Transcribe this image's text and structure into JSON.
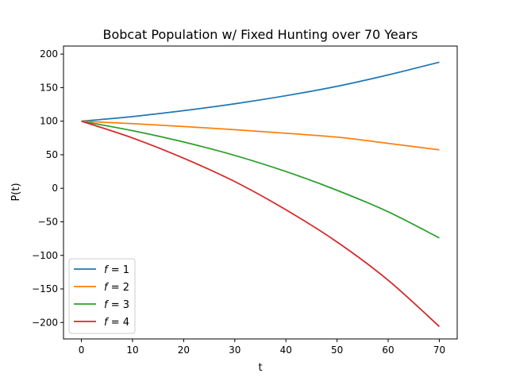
{
  "chart_data": {
    "type": "line",
    "title": "Bobcat Population w/ Fixed Hunting over 70 Years",
    "xlabel": "t",
    "ylabel": "P(t)",
    "xlim": [
      -3.5,
      73.5
    ],
    "ylim": [
      -224.5,
      212
    ],
    "xticks": [
      0,
      10,
      20,
      30,
      40,
      50,
      60,
      70
    ],
    "yticks": [
      -200,
      -150,
      -100,
      -50,
      0,
      50,
      100,
      150,
      200
    ],
    "ytick_labels": [
      "−200",
      "−150",
      "−100",
      "−50",
      "0",
      "50",
      "100",
      "150",
      "200"
    ],
    "grid": false,
    "legend_position": "lower-left",
    "x": [
      0,
      10,
      20,
      30,
      40,
      50,
      60,
      70
    ],
    "series": [
      {
        "name": "f = 1",
        "f": "1",
        "color": "#1f77b4",
        "values": [
          100,
          106.9,
          115.7,
          126.0,
          138.0,
          152.0,
          169.0,
          188.0
        ]
      },
      {
        "name": "f = 2",
        "f": "2",
        "color": "#ff7f0e",
        "values": [
          100,
          96.3,
          92.1,
          87.4,
          82.0,
          76.2,
          67.0,
          57.3
        ]
      },
      {
        "name": "f = 3",
        "f": "3",
        "color": "#2ca02c",
        "values": [
          100,
          85.9,
          69.0,
          49.0,
          25.0,
          -3.0,
          -35.0,
          -74.0
        ]
      },
      {
        "name": "f = 4",
        "f": "4",
        "color": "#d62728",
        "values": [
          100,
          75.0,
          44.8,
          10.0,
          -32.0,
          -80.0,
          -137.0,
          -206.0
        ]
      }
    ]
  }
}
